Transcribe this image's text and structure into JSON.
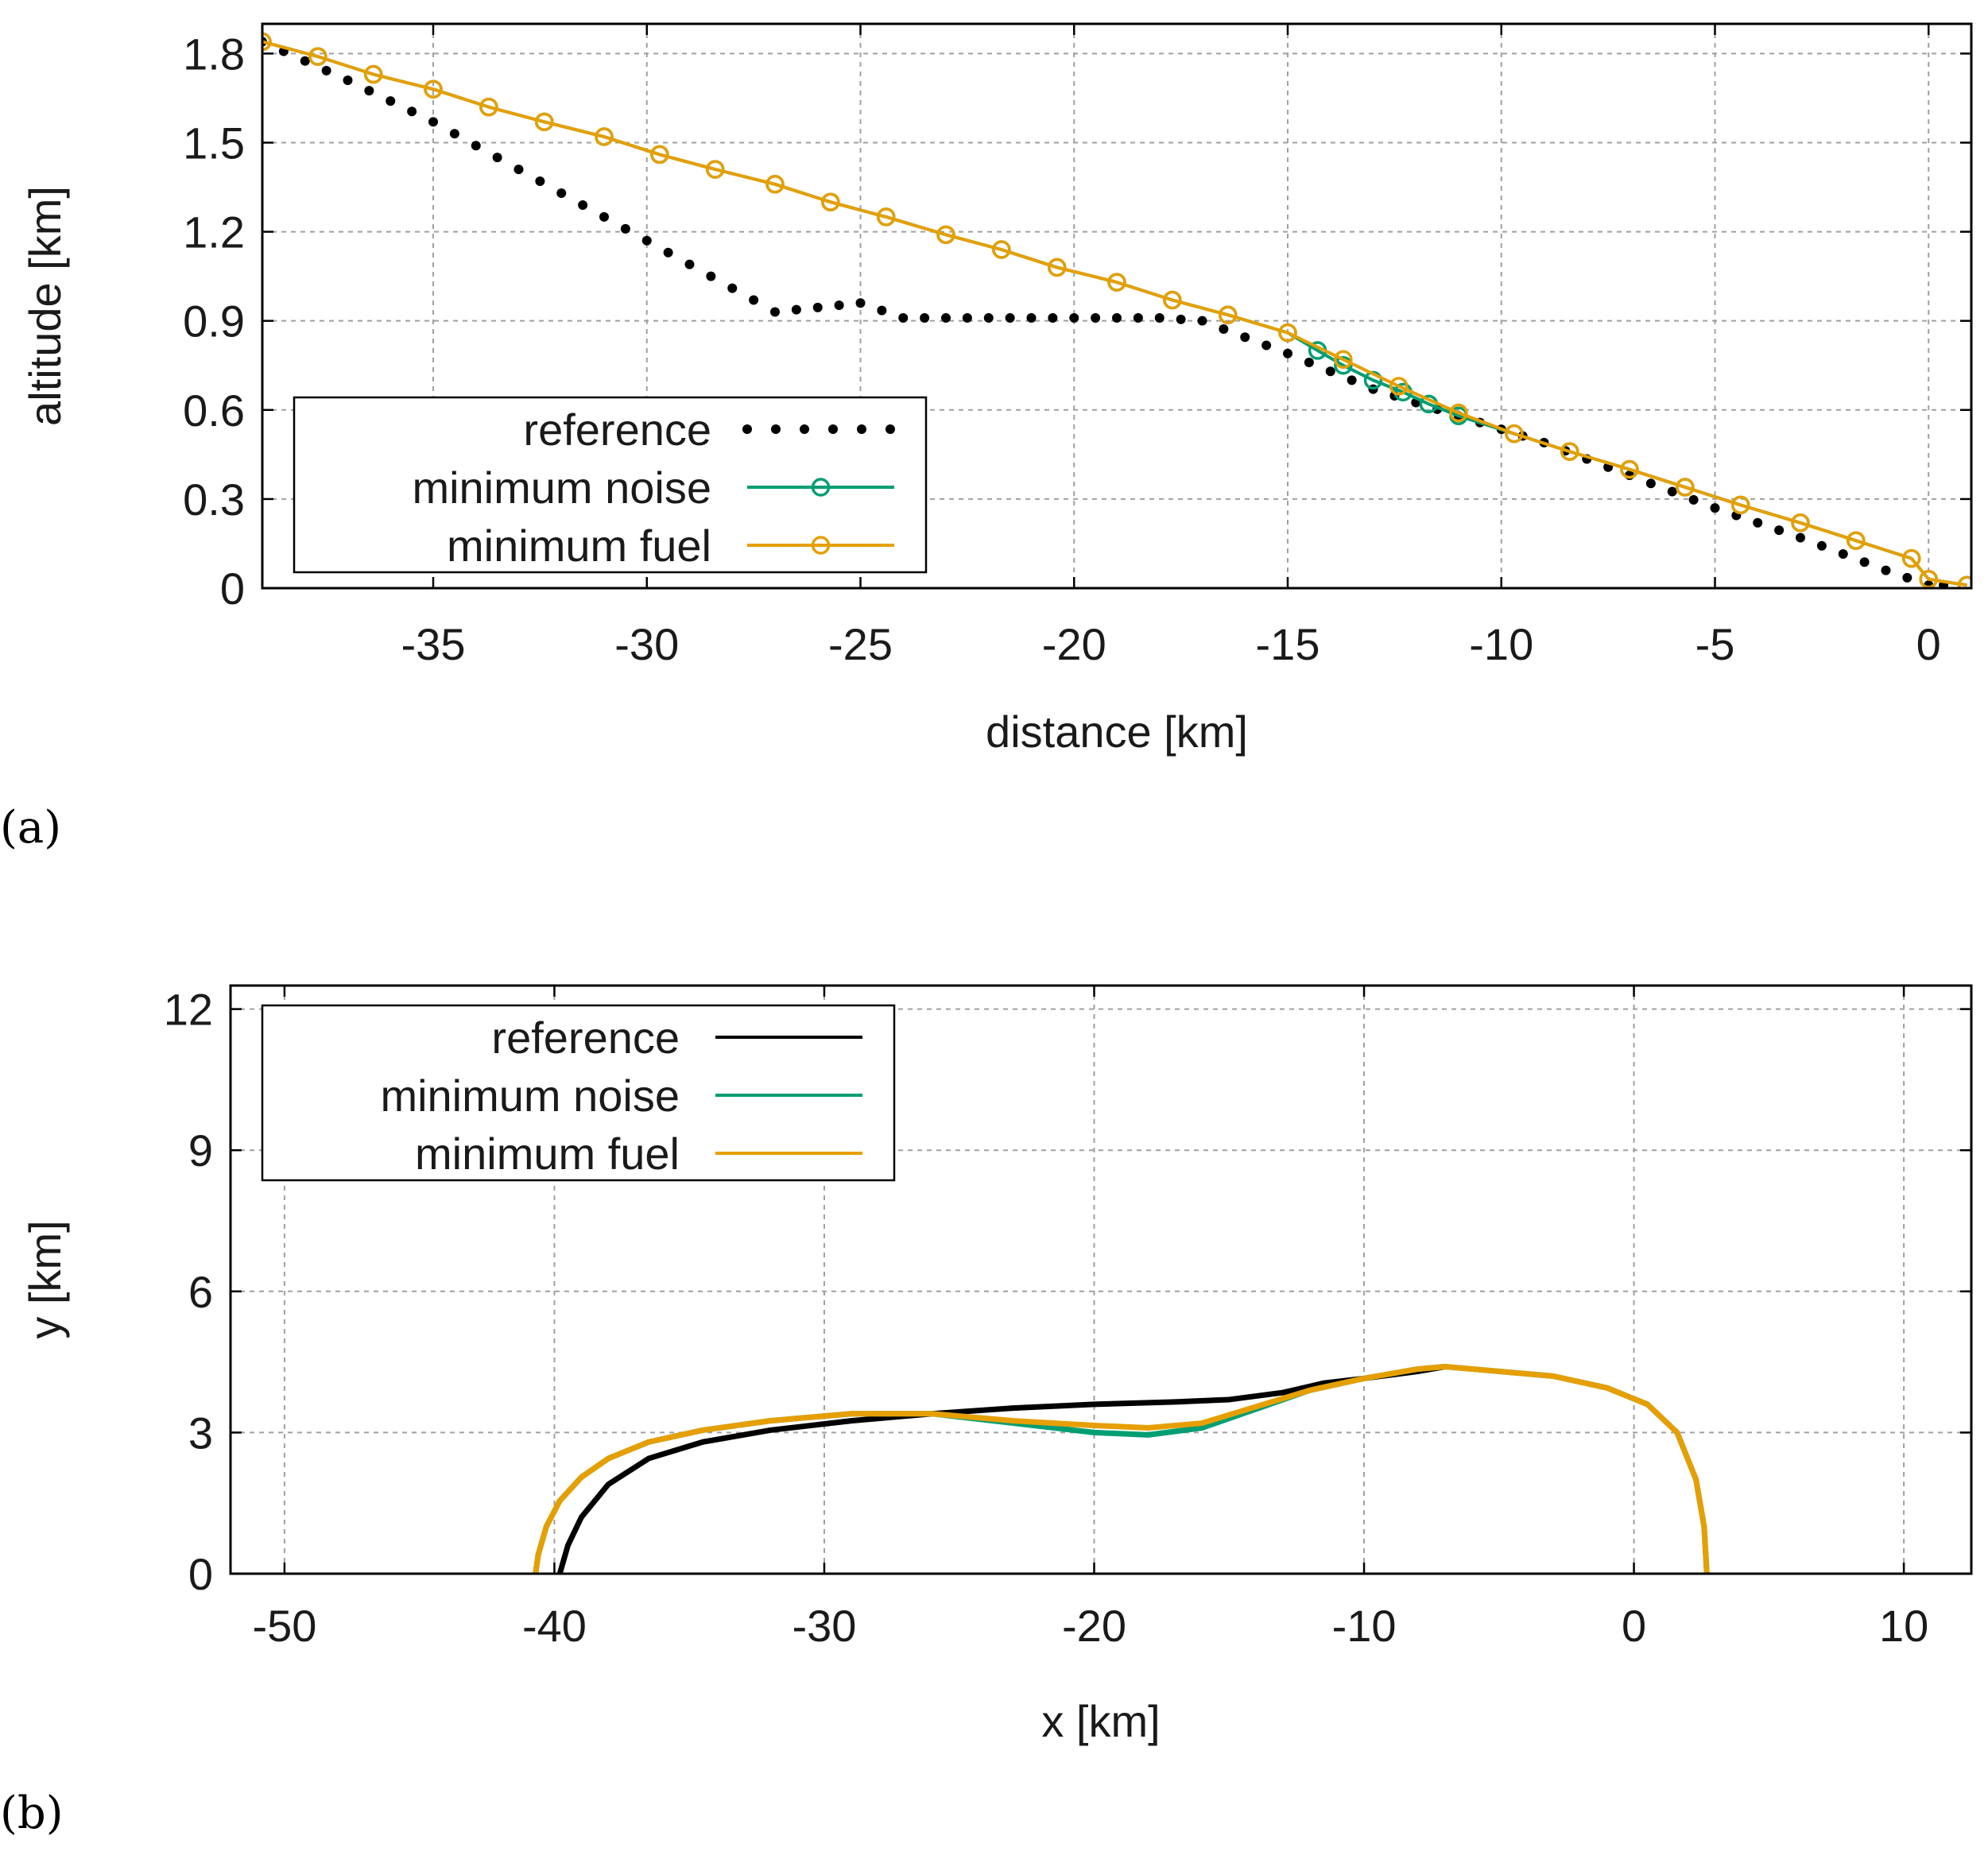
{
  "colors": {
    "reference": "#000000",
    "minimum_noise": "#009e73",
    "minimum_fuel": "#e69f00"
  },
  "chart_data": [
    {
      "panel_label": "(a)",
      "type": "line",
      "xlabel": "distance [km]",
      "ylabel": "altitude [km]",
      "xlim": [
        -39,
        1
      ],
      "ylim": [
        0,
        1.9
      ],
      "xticks": [
        -35,
        -30,
        -25,
        -20,
        -15,
        -10,
        -5,
        0
      ],
      "xtick_labels": [
        "-35",
        "-30",
        "-25",
        "-20",
        "-15",
        "-10",
        "-5",
        "0"
      ],
      "yticks": [
        0,
        0.3,
        0.6,
        0.9,
        1.2,
        1.5,
        1.8
      ],
      "ytick_labels": [
        "0",
        "0.3",
        "0.6",
        "0.9",
        "1.2",
        "1.5",
        "1.8"
      ],
      "grid": true,
      "legend_position": "bottom-left",
      "series": [
        {
          "name": "reference",
          "style": "dots",
          "x": [
            -39,
            -37,
            -35,
            -33,
            -31,
            -29,
            -27,
            -25,
            -24,
            -22,
            -20,
            -18,
            -17,
            -15,
            -13,
            -11,
            -9,
            -7,
            -5,
            -3,
            -1,
            0,
            0.7
          ],
          "y": [
            1.84,
            1.71,
            1.57,
            1.41,
            1.25,
            1.09,
            0.93,
            0.96,
            0.91,
            0.91,
            0.91,
            0.91,
            0.9,
            0.79,
            0.67,
            0.58,
            0.49,
            0.38,
            0.27,
            0.17,
            0.06,
            0.01,
            0.01
          ]
        },
        {
          "name": "minimum noise",
          "style": "line-circle",
          "x": [
            -39,
            -37.7,
            -36.4,
            -35,
            -33.7,
            -32.4,
            -31,
            -29.7,
            -28.4,
            -27,
            -25.7,
            -24.4,
            -23,
            -21.7,
            -20.4,
            -19,
            -17.7,
            -16.4,
            -15,
            -14.3,
            -13.7,
            -13,
            -12.3,
            -11.7,
            -11,
            -9.7,
            -8.4,
            -7,
            -5.7,
            -4.4,
            -3,
            -1.7,
            -0.4,
            0,
            0.9
          ],
          "y": [
            1.84,
            1.79,
            1.73,
            1.68,
            1.62,
            1.57,
            1.52,
            1.46,
            1.41,
            1.36,
            1.3,
            1.25,
            1.19,
            1.14,
            1.08,
            1.03,
            0.97,
            0.92,
            0.86,
            0.8,
            0.75,
            0.7,
            0.66,
            0.62,
            0.58,
            0.52,
            0.46,
            0.4,
            0.34,
            0.28,
            0.22,
            0.16,
            0.1,
            0.03,
            0.01
          ]
        },
        {
          "name": "minimum fuel",
          "style": "line-circle",
          "x": [
            -39,
            -37.7,
            -36.4,
            -35,
            -33.7,
            -32.4,
            -31,
            -29.7,
            -28.4,
            -27,
            -25.7,
            -24.4,
            -23,
            -21.7,
            -20.4,
            -19,
            -17.7,
            -16.4,
            -15,
            -13.7,
            -12.4,
            -11,
            -9.7,
            -8.4,
            -7,
            -5.7,
            -4.4,
            -3,
            -1.7,
            -0.4,
            0,
            0.9
          ],
          "y": [
            1.84,
            1.79,
            1.73,
            1.68,
            1.62,
            1.57,
            1.52,
            1.46,
            1.41,
            1.36,
            1.3,
            1.25,
            1.19,
            1.14,
            1.08,
            1.03,
            0.97,
            0.92,
            0.86,
            0.77,
            0.68,
            0.59,
            0.52,
            0.46,
            0.4,
            0.34,
            0.28,
            0.22,
            0.16,
            0.1,
            0.03,
            0.01
          ]
        }
      ]
    },
    {
      "panel_label": "(b)",
      "type": "line",
      "xlabel": "x [km]",
      "ylabel": "y [km]",
      "xlim": [
        -52,
        12.5
      ],
      "ylim": [
        0,
        12.5
      ],
      "xticks": [
        -50,
        -40,
        -30,
        -20,
        -10,
        0,
        10
      ],
      "xtick_labels": [
        "-50",
        "-40",
        "-30",
        "-20",
        "-10",
        "0",
        "10"
      ],
      "yticks": [
        0,
        3,
        6,
        9,
        12
      ],
      "ytick_labels": [
        "0",
        "3",
        "6",
        "9",
        "12"
      ],
      "grid": true,
      "legend_position": "top-left",
      "series": [
        {
          "name": "reference",
          "x": [
            -39.8,
            -39.5,
            -39,
            -38,
            -36.5,
            -34.5,
            -32,
            -29,
            -26,
            -23,
            -20,
            -17,
            -15,
            -13,
            -11.5,
            -10,
            -8,
            -7
          ],
          "y": [
            0,
            0.6,
            1.2,
            1.9,
            2.45,
            2.8,
            3.05,
            3.25,
            3.4,
            3.52,
            3.6,
            3.65,
            3.7,
            3.85,
            4.05,
            4.15,
            4.3,
            4.4
          ]
        },
        {
          "name": "minimum noise",
          "x": [
            -40.7,
            -40.6,
            -40.3,
            -39.8,
            -39,
            -38,
            -36.5,
            -34.5,
            -32,
            -29,
            -26,
            -23,
            -20,
            -18,
            -16,
            -14,
            -12,
            -10,
            -8,
            -7,
            -5,
            -3,
            -1,
            0.5,
            1.6,
            2.3,
            2.6,
            2.7
          ],
          "y": [
            0,
            0.4,
            1.0,
            1.55,
            2.05,
            2.45,
            2.8,
            3.05,
            3.25,
            3.4,
            3.4,
            3.2,
            3.0,
            2.95,
            3.1,
            3.5,
            3.9,
            4.15,
            4.35,
            4.4,
            4.3,
            4.2,
            3.95,
            3.6,
            3.0,
            2.0,
            1.0,
            0
          ]
        },
        {
          "name": "minimum fuel",
          "x": [
            -40.7,
            -40.6,
            -40.3,
            -39.8,
            -39,
            -38,
            -36.5,
            -34.5,
            -32,
            -29,
            -26,
            -23,
            -20,
            -18,
            -16,
            -14,
            -12,
            -10,
            -8,
            -7,
            -5,
            -3,
            -1,
            0.5,
            1.6,
            2.3,
            2.6,
            2.7
          ],
          "y": [
            0,
            0.4,
            1.0,
            1.55,
            2.05,
            2.45,
            2.8,
            3.05,
            3.25,
            3.4,
            3.4,
            3.25,
            3.15,
            3.1,
            3.2,
            3.55,
            3.9,
            4.15,
            4.35,
            4.4,
            4.3,
            4.2,
            3.95,
            3.6,
            3.0,
            2.0,
            1.0,
            0
          ]
        }
      ]
    }
  ]
}
